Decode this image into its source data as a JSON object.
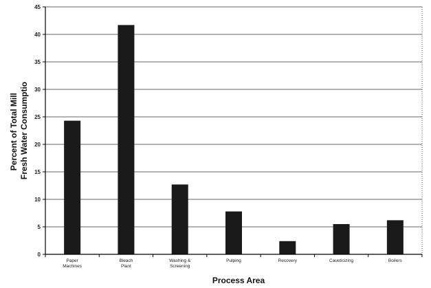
{
  "chart_data": {
    "type": "bar",
    "title": "",
    "xlabel": "Process Area",
    "ylabel_lines": [
      "Percent of Total Mill",
      "Fresh Water Consumptio"
    ],
    "ylim": [
      0,
      45
    ],
    "yticks": [
      0,
      5,
      10,
      15,
      20,
      25,
      30,
      35,
      40,
      45
    ],
    "categories": [
      [
        "Paper",
        "Machines"
      ],
      [
        "Bleach",
        "Plant"
      ],
      [
        "Washing &",
        "Screening"
      ],
      [
        "Pulping"
      ],
      [
        "Recovery"
      ],
      [
        "Causticizing"
      ],
      [
        "Boilers"
      ]
    ],
    "values": [
      24.3,
      41.7,
      12.7,
      7.8,
      2.4,
      5.5,
      6.2
    ],
    "grid": true,
    "bar_color": "#1a1a1a"
  }
}
